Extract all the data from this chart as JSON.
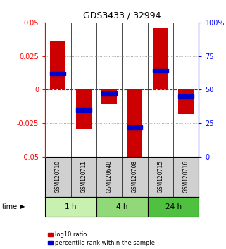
{
  "title": "GDS3433 / 32994",
  "samples": [
    "GSM120710",
    "GSM120711",
    "GSM120648",
    "GSM120708",
    "GSM120715",
    "GSM120716"
  ],
  "log10_ratios": [
    0.036,
    -0.029,
    -0.011,
    -0.052,
    0.046,
    -0.018
  ],
  "percentile_ranks": [
    0.62,
    0.35,
    0.47,
    0.22,
    0.64,
    0.45
  ],
  "time_groups": [
    {
      "label": "1 h",
      "start": 0,
      "end": 2,
      "color": "#c8f0b0"
    },
    {
      "label": "4 h",
      "start": 2,
      "end": 4,
      "color": "#90d878"
    },
    {
      "label": "24 h",
      "start": 4,
      "end": 6,
      "color": "#50c040"
    }
  ],
  "ylim": [
    -0.05,
    0.05
  ],
  "yticks_left": [
    -0.05,
    -0.025,
    0,
    0.025,
    0.05
  ],
  "yticks_right": [
    0,
    25,
    50,
    75,
    100
  ],
  "bar_color": "#cc0000",
  "percentile_color": "#0000cc",
  "bar_width": 0.6,
  "grid_color": "#555555",
  "zero_line_color": "#cc0000",
  "bg_color": "#ffffff",
  "label_log10": "log10 ratio",
  "label_percentile": "percentile rank within the sample"
}
